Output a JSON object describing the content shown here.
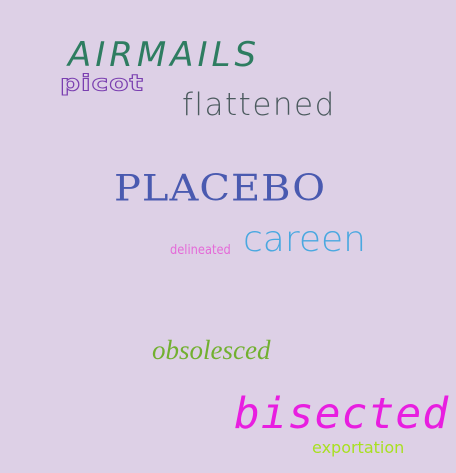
{
  "background_color": "#ddd0e6",
  "words": {
    "airmails": {
      "text": "AIRMAILS",
      "color": "#2e7d61"
    },
    "picot": {
      "text": "picot",
      "color": "#7a3fb0"
    },
    "flattened": {
      "text": "flattened",
      "color": "#4b5a5e"
    },
    "placebo": {
      "text": "PLACEBO",
      "color": "#4a5ab0"
    },
    "delineated": {
      "text": "delineated",
      "color": "#e46ad8"
    },
    "careen": {
      "text": "careen",
      "color": "#4aa8e0"
    },
    "obsolesced": {
      "text": "obsolesced",
      "color": "#72b030"
    },
    "bisected": {
      "text": "bisected",
      "color": "#e81ee0"
    },
    "exportation": {
      "text": "exportation",
      "color": "#a8e020"
    }
  }
}
